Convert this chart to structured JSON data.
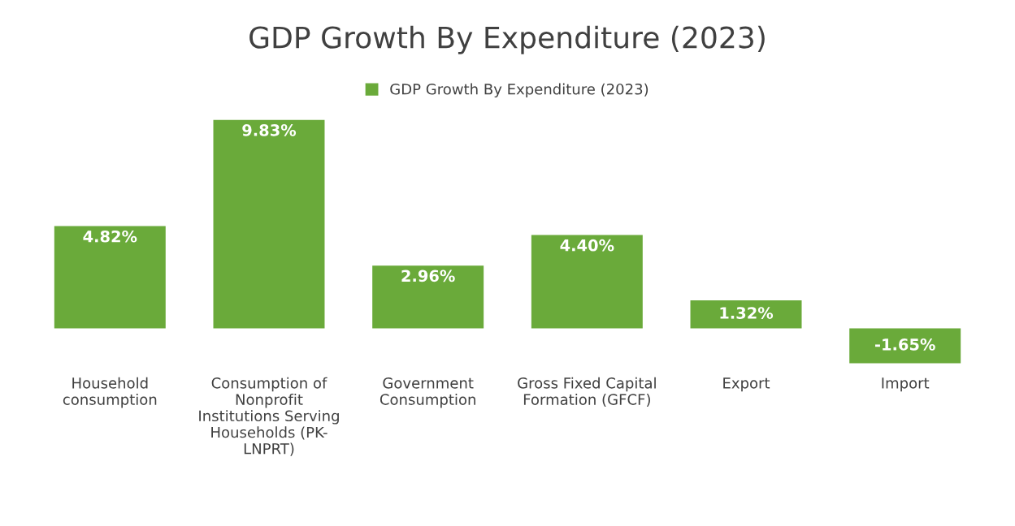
{
  "chart_data": {
    "type": "bar",
    "title": "GDP Growth By Expenditure (2023)",
    "categories": [
      "Household\nconsumption",
      "Consumption of\nNonprofit\nInstitutions Serving\nHouseholds (PK-\nLNPRT)",
      "Government\nConsumption",
      "Gross Fixed Capital\nFormation (GFCF)",
      "Export",
      "Import"
    ],
    "series": [
      {
        "name": "GDP Growth By Expenditure (2023)",
        "color": "#6aaa3a",
        "values": [
          4.82,
          9.83,
          2.96,
          4.4,
          1.32,
          -1.65
        ],
        "value_labels": [
          "4.82%",
          "9.83%",
          "2.96%",
          "4.40%",
          "1.32%",
          "-1.65%"
        ]
      }
    ],
    "legend": "top",
    "grid": false
  }
}
